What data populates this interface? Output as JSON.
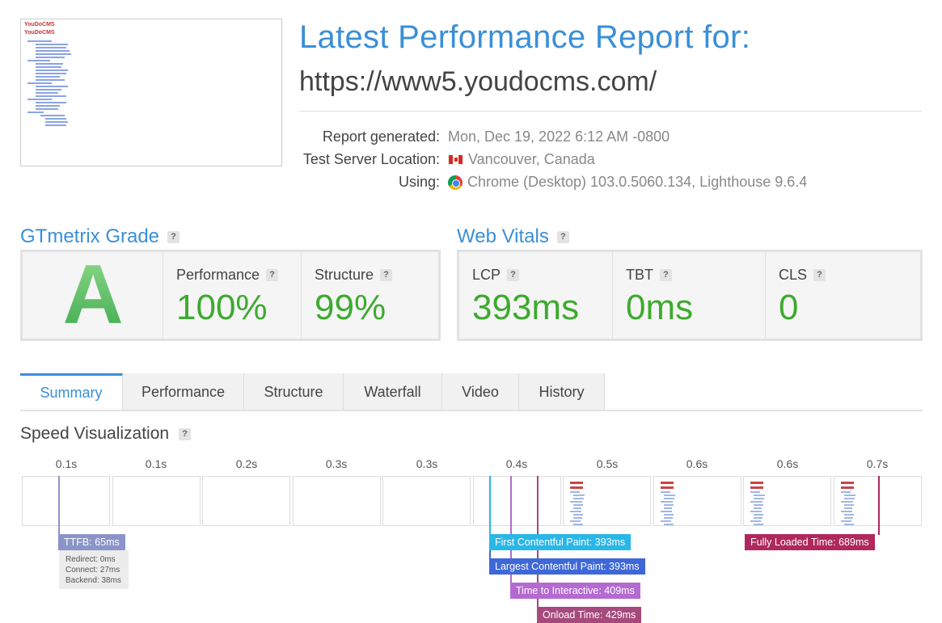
{
  "header": {
    "thumbnail": {
      "logo_text": "YouDoCMS"
    },
    "title": "Latest Performance Report for:",
    "url": "https://www5.youdocms.com/",
    "meta": [
      {
        "label": "Report generated:",
        "value": "Mon, Dec 19, 2022 6:12 AM -0800",
        "icon": ""
      },
      {
        "label": "Test Server Location:",
        "value": "Vancouver, Canada",
        "icon": "canada-flag-icon"
      },
      {
        "label": "Using:",
        "value": "Chrome (Desktop) 103.0.5060.134, Lighthouse 9.6.4",
        "icon": "chrome-icon"
      }
    ]
  },
  "grade": {
    "heading": "GTmetrix Grade",
    "help": "?",
    "letter": "A",
    "performance": {
      "label": "Performance",
      "value": "100%"
    },
    "structure": {
      "label": "Structure",
      "value": "99%"
    }
  },
  "vitals": {
    "heading": "Web Vitals",
    "help": "?",
    "lcp": {
      "label": "LCP",
      "value": "393ms"
    },
    "tbt": {
      "label": "TBT",
      "value": "0ms"
    },
    "cls": {
      "label": "CLS",
      "value": "0"
    }
  },
  "tabs": [
    "Summary",
    "Performance",
    "Structure",
    "Waterfall",
    "Video",
    "History"
  ],
  "active_tab": "Summary",
  "speed": {
    "heading": "Speed Visualization",
    "help": "?",
    "time_labels": [
      "0.1s",
      "0.1s",
      "0.2s",
      "0.3s",
      "0.3s",
      "0.4s",
      "0.5s",
      "0.6s",
      "0.6s",
      "0.7s"
    ],
    "frames_rendered": [
      false,
      false,
      false,
      false,
      false,
      false,
      true,
      true,
      true,
      true
    ],
    "markers": {
      "ttfb": "TTFB: 65ms",
      "ttfb_detail": [
        "Redirect: 0ms",
        "Connect: 27ms",
        "Backend: 38ms"
      ],
      "fcp": "First Contentful Paint: 393ms",
      "lcp": "Largest Contentful Paint: 393ms",
      "tti": "Time to Interactive: 409ms",
      "onload": "Onload Time: 429ms",
      "fully_loaded": "Fully Loaded Time: 689ms"
    },
    "colors": {
      "ttfb": "#8a94c8",
      "fcp": "#29b6e8",
      "lcp": "#3e68d8",
      "tti": "#b46ad0",
      "onload": "#a6497c",
      "fully_loaded": "#b0285e"
    }
  }
}
